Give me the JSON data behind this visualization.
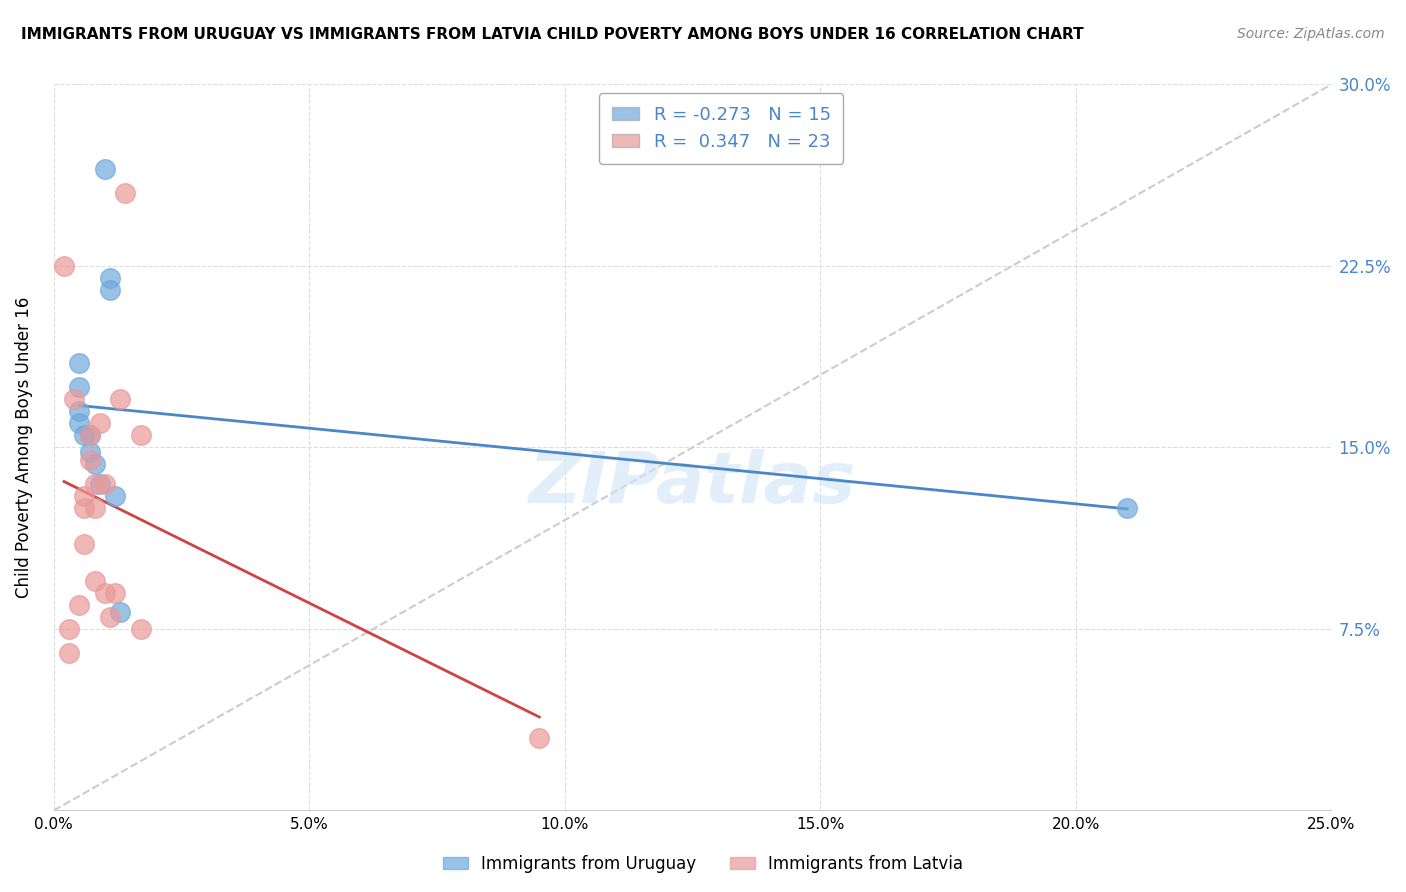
{
  "title": "IMMIGRANTS FROM URUGUAY VS IMMIGRANTS FROM LATVIA CHILD POVERTY AMONG BOYS UNDER 16 CORRELATION CHART",
  "source": "Source: ZipAtlas.com",
  "ylabel": "Child Poverty Among Boys Under 16",
  "xlim": [
    0.0,
    0.25
  ],
  "ylim": [
    0.0,
    0.3
  ],
  "uruguay_x": [
    0.005,
    0.005,
    0.005,
    0.005,
    0.006,
    0.007,
    0.007,
    0.008,
    0.009,
    0.01,
    0.011,
    0.011,
    0.012,
    0.013,
    0.21
  ],
  "uruguay_y": [
    0.185,
    0.175,
    0.165,
    0.16,
    0.155,
    0.155,
    0.148,
    0.143,
    0.135,
    0.265,
    0.22,
    0.215,
    0.13,
    0.082,
    0.125
  ],
  "latvia_x": [
    0.002,
    0.003,
    0.003,
    0.004,
    0.005,
    0.006,
    0.006,
    0.006,
    0.007,
    0.007,
    0.008,
    0.008,
    0.008,
    0.009,
    0.01,
    0.01,
    0.011,
    0.012,
    0.013,
    0.014,
    0.017,
    0.017,
    0.095
  ],
  "latvia_y": [
    0.225,
    0.075,
    0.065,
    0.17,
    0.085,
    0.13,
    0.125,
    0.11,
    0.155,
    0.145,
    0.135,
    0.125,
    0.095,
    0.16,
    0.135,
    0.09,
    0.08,
    0.09,
    0.17,
    0.255,
    0.155,
    0.075,
    0.03
  ],
  "uruguay_color": "#6fa8dc",
  "latvia_color": "#ea9999",
  "uruguay_line_color": "#4a86c8",
  "latvia_line_color": "#cc4444",
  "diagonal_color": "#cccccc",
  "R_uruguay": -0.273,
  "N_uruguay": 15,
  "R_latvia": 0.347,
  "N_latvia": 23,
  "watermark": "ZIPatlas",
  "background_color": "#ffffff",
  "grid_color": "#dddddd"
}
